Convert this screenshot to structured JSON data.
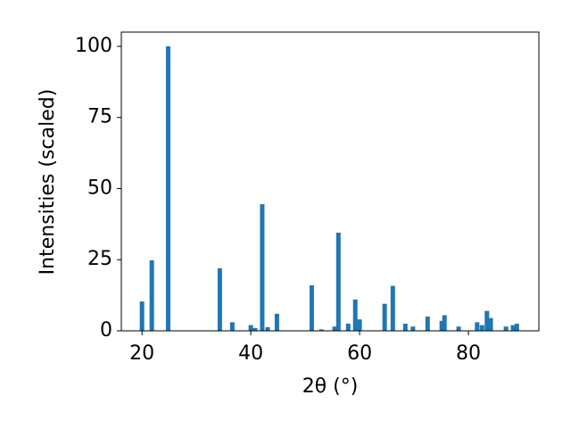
{
  "chart_data": {
    "type": "bar",
    "x_label": "2θ (°)",
    "y_label": "Intensities (scaled)",
    "x": [
      20.0,
      21.8,
      24.8,
      34.3,
      36.6,
      40.0,
      40.8,
      42.1,
      43.1,
      44.8,
      51.2,
      53.0,
      55.4,
      56.1,
      57.9,
      59.2,
      60.0,
      64.6,
      66.1,
      68.4,
      69.8,
      72.5,
      75.1,
      75.6,
      78.2,
      81.6,
      82.5,
      83.4,
      84.1,
      86.9,
      88.2,
      88.9
    ],
    "values": [
      10.3,
      24.8,
      100,
      22,
      3,
      2,
      1,
      44.5,
      1.3,
      6,
      16,
      0.5,
      1.5,
      34.5,
      2.5,
      11,
      4,
      9.5,
      15.8,
      2.5,
      1.5,
      5,
      3.5,
      5.5,
      1.5,
      3,
      2,
      7,
      4.5,
      1.5,
      2,
      2.5
    ],
    "color": "#1f77b4",
    "xlim": [
      16.2,
      92.95
    ],
    "xticks": [
      20,
      40,
      60,
      80
    ],
    "ylim": [
      0,
      105
    ],
    "yticks": [
      0,
      25,
      50,
      75,
      100
    ]
  }
}
